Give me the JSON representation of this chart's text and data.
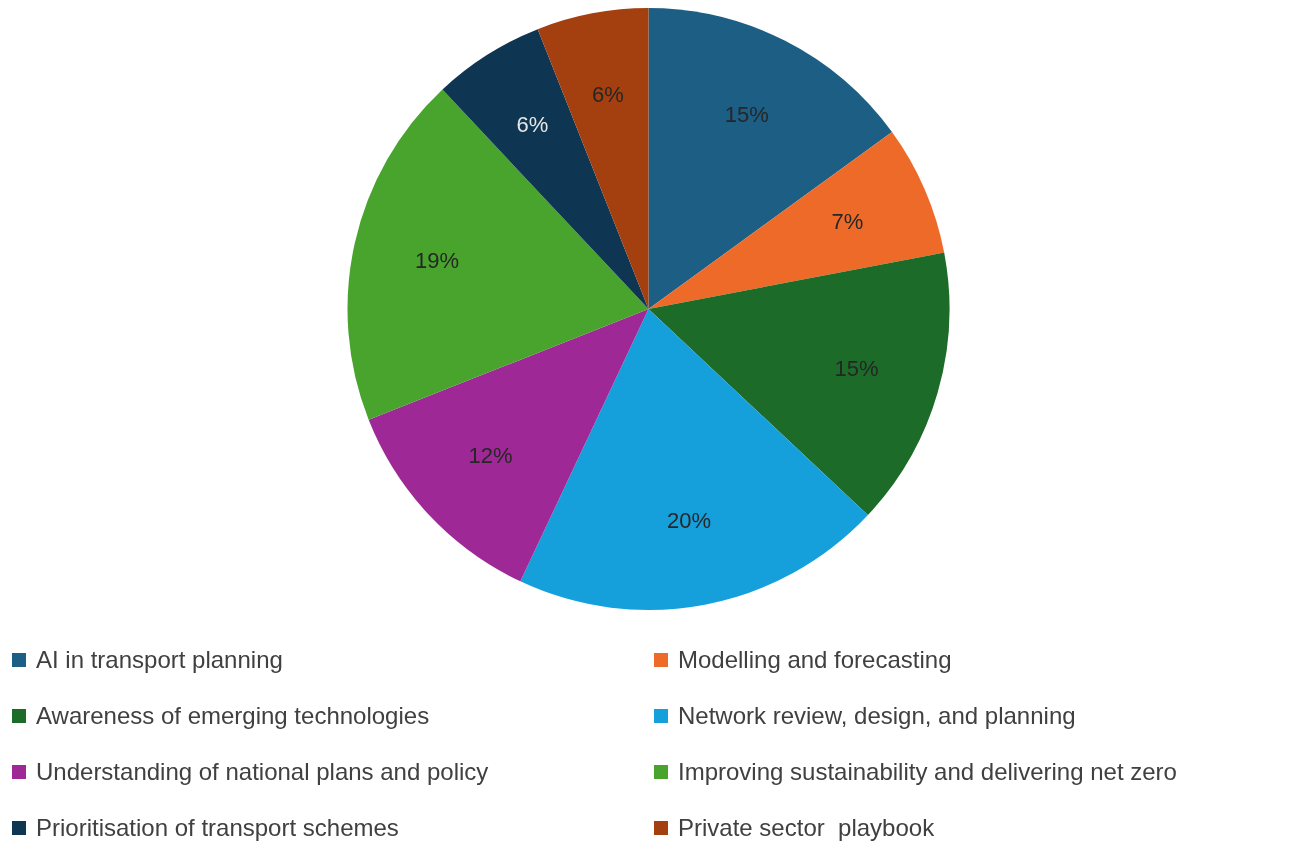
{
  "chart_data": {
    "type": "pie",
    "categories": [
      "AI in transport planning",
      "Modelling and forecasting",
      "Awareness of emerging technologies",
      "Network review, design, and planning",
      "Understanding of national plans and policy",
      "Improving sustainability and delivering net zero",
      "Prioritisation of transport schemes",
      "Private sector  playbook"
    ],
    "values": [
      15,
      7,
      15,
      20,
      12,
      19,
      6,
      6
    ],
    "colors": [
      "#1d5e84",
      "#ee6a28",
      "#1c6b28",
      "#15a0dc",
      "#9e2896",
      "#48a42c",
      "#0e3552",
      "#a4400f"
    ],
    "value_labels": [
      "15%",
      "7%",
      "15%",
      "20%",
      "12%",
      "19%",
      "6%",
      "6%"
    ],
    "legend": "bottom"
  }
}
